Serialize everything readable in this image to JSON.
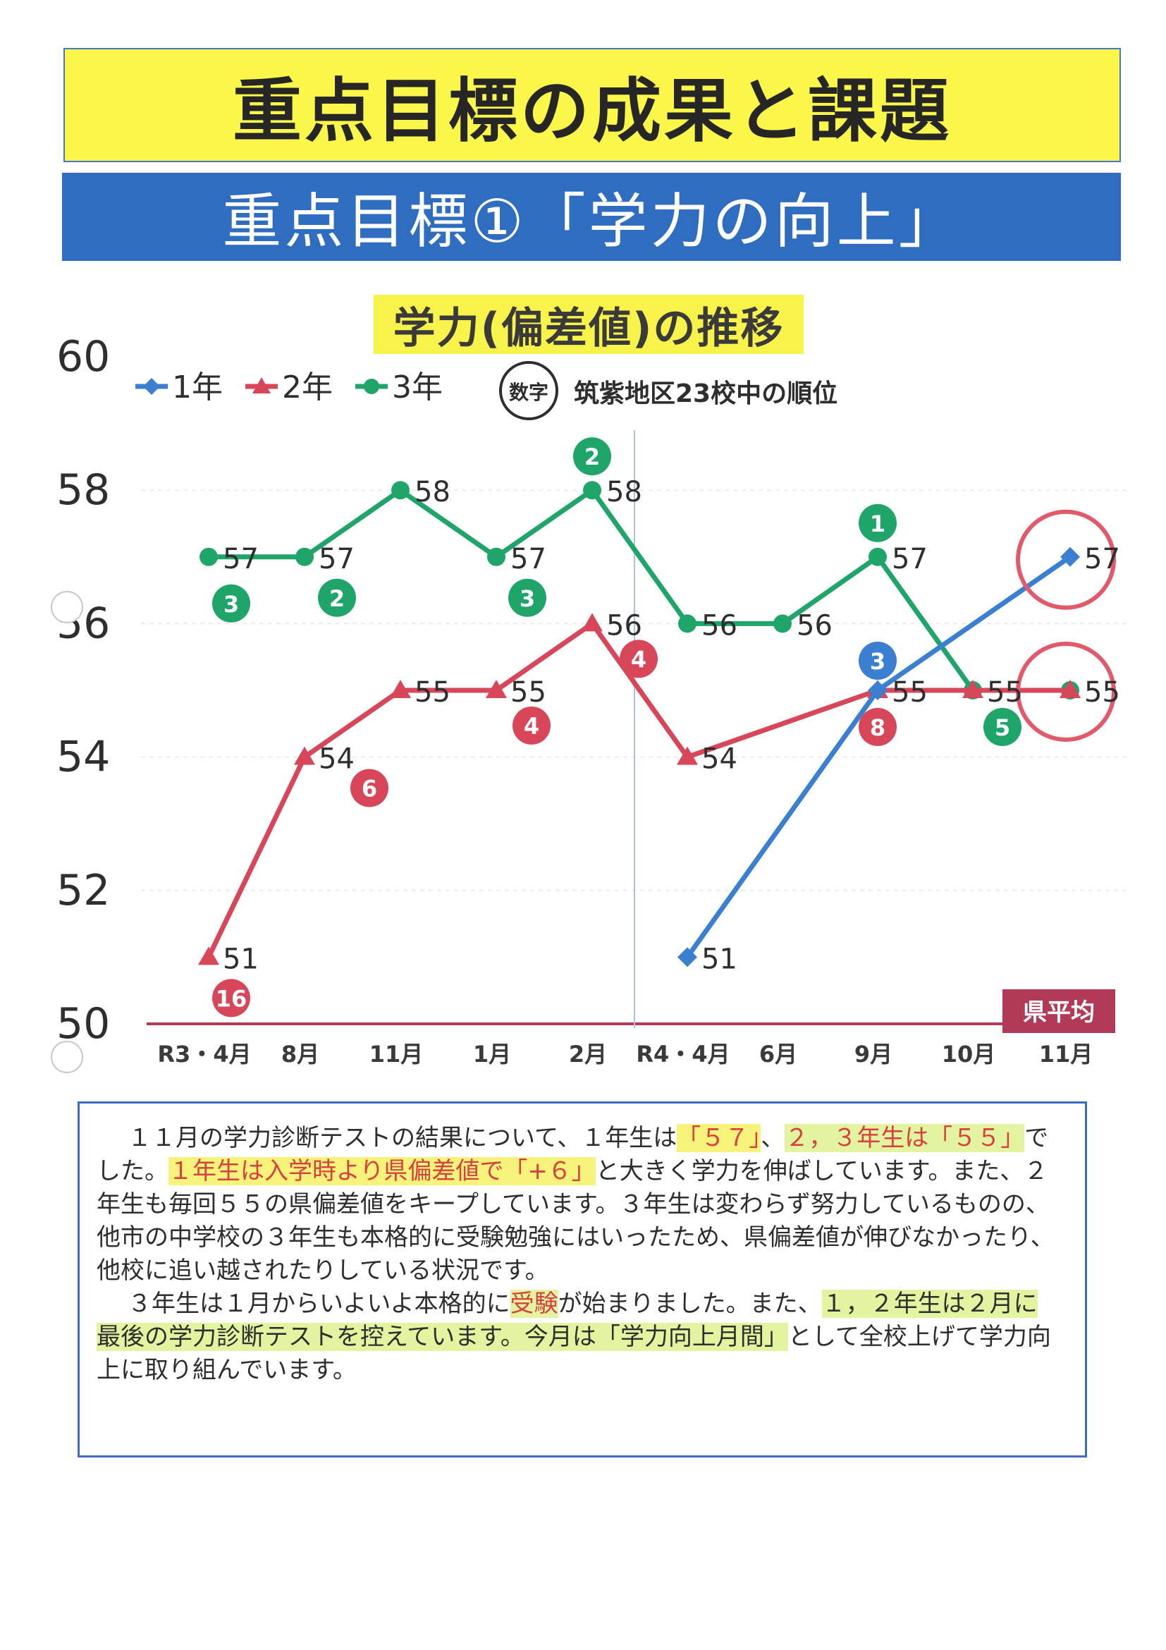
{
  "header": {
    "main_title": "重点目標の成果と課題",
    "sub_title": "重点目標①「学力の向上」"
  },
  "chart_data": {
    "type": "line",
    "title": "学力(偏差値)の推移",
    "categories": [
      "R3・4月",
      "8月",
      "11月",
      "1月",
      "2月",
      "R4・4月",
      "6月",
      "9月",
      "10月",
      "11月"
    ],
    "y_ticks": [
      "60",
      "58",
      "56",
      "54",
      "52",
      "50"
    ],
    "ylim": [
      50,
      60
    ],
    "legend_note_badge": "数字",
    "legend_note_text": "筑紫地区23校中の順位",
    "baseline_label": "県平均",
    "series": [
      {
        "name": "1年",
        "color": "#3a7fd0",
        "values": [
          null,
          null,
          null,
          null,
          null,
          51,
          null,
          55,
          null,
          57
        ],
        "labels": [
          "",
          "",
          "",
          "",
          "",
          "51",
          "",
          "",
          "",
          "57"
        ],
        "ranks": [
          "",
          "",
          "",
          "",
          "",
          "",
          "",
          "3",
          "",
          ""
        ]
      },
      {
        "name": "2年",
        "color": "#d8465a",
        "values": [
          51,
          54,
          55,
          55,
          56,
          54,
          null,
          55,
          55,
          55
        ],
        "labels": [
          "51",
          "54",
          "55",
          "55",
          "56",
          "54",
          "",
          "55",
          "",
          ""
        ],
        "ranks": [
          "16",
          "6",
          "",
          "4",
          "4",
          "",
          "",
          "8",
          "",
          ""
        ]
      },
      {
        "name": "3年",
        "color": "#1fa46a",
        "values": [
          57,
          57,
          58,
          57,
          58,
          56,
          56,
          57,
          55,
          55
        ],
        "labels": [
          "57",
          "57",
          "58",
          "57",
          "58",
          "56",
          "56",
          "57",
          "55",
          "55"
        ],
        "ranks": [
          "3",
          "2",
          "",
          "3",
          "2",
          "",
          "",
          "1",
          "5",
          ""
        ]
      }
    ]
  },
  "summary": {
    "p1": {
      "t1": "１１月の学力診断テストの結果について、１年生は",
      "h1": "「５７」",
      "t2": "、",
      "h2": "２，３年生は「５５」",
      "t3": "でした。",
      "h3": "１年生は入学時より県偏差値で「+６」",
      "t4": "と大きく学力を伸ばしています。また、２年生も毎回５５の県偏差値をキープしています。３年生は変わらず努力しているものの、他市の中学校の３年生も本格的に受験勉強にはいったため、県偏差値が伸びなかったり、他校に追い越されたりしている状況です。"
    },
    "p2": {
      "t1": "３年生は１月からいよいよ本格的に",
      "h1": "受験",
      "t2": "が始まりました。また、",
      "h2": "１，２年生は２月に最後の学力診断テストを控えています。今月は「学力向上月間」",
      "t3": "として全校上げて学力向上に取り組んでいます。"
    }
  }
}
